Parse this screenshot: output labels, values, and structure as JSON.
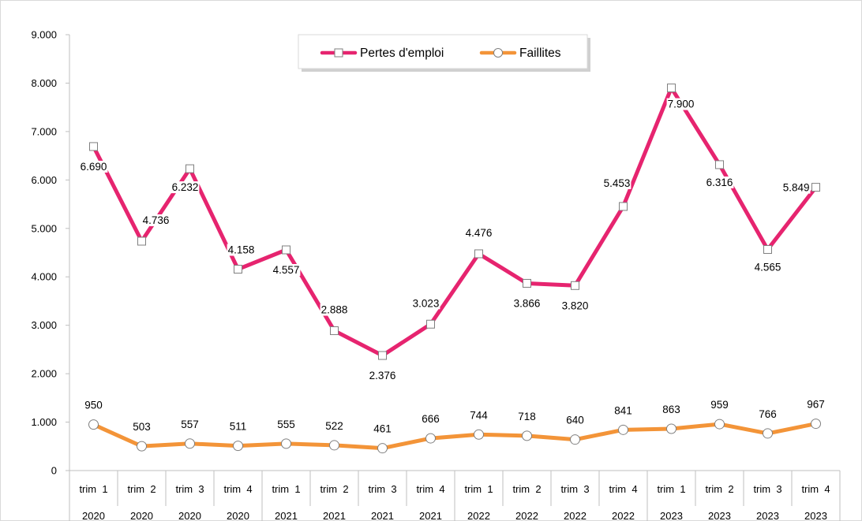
{
  "chart_data": {
    "type": "line",
    "x": [
      {
        "quarter": "trim  1",
        "year": "2020"
      },
      {
        "quarter": "trim  2",
        "year": "2020"
      },
      {
        "quarter": "trim  3",
        "year": "2020"
      },
      {
        "quarter": "trim  4",
        "year": "2020"
      },
      {
        "quarter": "trim  1",
        "year": "2021"
      },
      {
        "quarter": "trim  2",
        "year": "2021"
      },
      {
        "quarter": "trim  3",
        "year": "2021"
      },
      {
        "quarter": "trim  4",
        "year": "2021"
      },
      {
        "quarter": "trim  1",
        "year": "2022"
      },
      {
        "quarter": "trim  2",
        "year": "2022"
      },
      {
        "quarter": "trim  3",
        "year": "2022"
      },
      {
        "quarter": "trim  4",
        "year": "2022"
      },
      {
        "quarter": "trim  1",
        "year": "2023"
      },
      {
        "quarter": "trim  2",
        "year": "2023"
      },
      {
        "quarter": "trim  3",
        "year": "2023"
      },
      {
        "quarter": "trim  4",
        "year": "2023"
      }
    ],
    "series": [
      {
        "name": "Pertes d'emploi",
        "color": "#e6246f",
        "marker": "square",
        "values": [
          6690,
          4736,
          6232,
          4158,
          4557,
          2888,
          2376,
          3023,
          4476,
          3866,
          3820,
          5453,
          7900,
          6316,
          4565,
          5849
        ],
        "labels": [
          "6.690",
          "4.736",
          "6.232",
          "4.158",
          "4.557",
          "2.888",
          "2.376",
          "3.023",
          "4.476",
          "3.866",
          "3.820",
          "5.453",
          "7.900",
          "6.316",
          "4.565",
          "5.849"
        ]
      },
      {
        "name": "Faillites",
        "color": "#f39438",
        "marker": "circle",
        "values": [
          950,
          503,
          557,
          511,
          555,
          522,
          461,
          666,
          744,
          718,
          640,
          841,
          863,
          959,
          766,
          967
        ],
        "labels": [
          "950",
          "503",
          "557",
          "511",
          "555",
          "522",
          "461",
          "666",
          "744",
          "718",
          "640",
          "841",
          "863",
          "959",
          "766",
          "967"
        ]
      }
    ],
    "ylim": [
      0,
      9000
    ],
    "yticks": [
      0,
      1000,
      2000,
      3000,
      4000,
      5000,
      6000,
      7000,
      8000,
      9000
    ],
    "ytick_labels": [
      "0",
      "1.000",
      "2.000",
      "3.000",
      "4.000",
      "5.000",
      "6.000",
      "7.000",
      "8.000",
      "9.000"
    ],
    "grid": false,
    "legend": "top-center",
    "title": "",
    "xlabel": "",
    "ylabel": ""
  }
}
